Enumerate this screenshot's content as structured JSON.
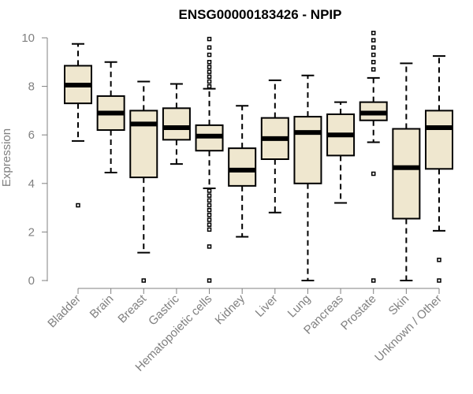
{
  "chart_data": {
    "type": "boxplot",
    "title": "ENSG00000183426 - NPIP",
    "xlabel": "",
    "ylabel": "Expression",
    "ylim": [
      0,
      10
    ],
    "yticks": [
      0,
      2,
      4,
      6,
      8,
      10
    ],
    "grid": false,
    "colors": {
      "box_fill": "#efe7cf",
      "box_stroke": "#000000",
      "axis": "#808080",
      "title": "#000000"
    },
    "categories": [
      "Bladder",
      "Brain",
      "Breast",
      "Gastric",
      "Hematopoietic cells",
      "Kidney",
      "Liver",
      "Lung",
      "Pancreas",
      "Prostate",
      "Skin",
      "Unknown / Other"
    ],
    "boxes": [
      {
        "name": "Bladder",
        "whisker_low": 5.75,
        "q1": 7.3,
        "median": 8.05,
        "q3": 8.85,
        "whisker_high": 9.75,
        "outliers": [
          3.1
        ]
      },
      {
        "name": "Brain",
        "whisker_low": 4.45,
        "q1": 6.2,
        "median": 6.9,
        "q3": 7.6,
        "whisker_high": 9.0,
        "outliers": []
      },
      {
        "name": "Breast",
        "whisker_low": 1.15,
        "q1": 4.25,
        "median": 6.45,
        "q3": 7.0,
        "whisker_high": 8.2,
        "outliers": [
          0.0
        ]
      },
      {
        "name": "Gastric",
        "whisker_low": 4.8,
        "q1": 5.8,
        "median": 6.3,
        "q3": 7.1,
        "whisker_high": 8.1,
        "outliers": []
      },
      {
        "name": "Hematopoietic cells",
        "whisker_low": 3.8,
        "q1": 5.35,
        "median": 5.95,
        "q3": 6.4,
        "whisker_high": 7.9,
        "outliers": [
          0.0,
          1.4,
          2.1,
          2.3,
          2.5,
          2.7,
          2.9,
          3.1,
          3.3,
          3.5,
          3.7,
          8.0,
          8.2,
          8.4,
          8.6,
          8.8,
          9.0,
          9.3,
          9.6,
          9.95
        ]
      },
      {
        "name": "Kidney",
        "whisker_low": 1.8,
        "q1": 3.9,
        "median": 4.55,
        "q3": 5.45,
        "whisker_high": 7.2,
        "outliers": []
      },
      {
        "name": "Liver",
        "whisker_low": 2.8,
        "q1": 5.0,
        "median": 5.85,
        "q3": 6.7,
        "whisker_high": 8.25,
        "outliers": []
      },
      {
        "name": "Lung",
        "whisker_low": 0.0,
        "q1": 4.0,
        "median": 6.1,
        "q3": 6.75,
        "whisker_high": 8.45,
        "outliers": []
      },
      {
        "name": "Pancreas",
        "whisker_low": 3.2,
        "q1": 5.15,
        "median": 6.0,
        "q3": 6.85,
        "whisker_high": 7.35,
        "outliers": []
      },
      {
        "name": "Prostate",
        "whisker_low": 5.7,
        "q1": 6.6,
        "median": 6.9,
        "q3": 7.35,
        "whisker_high": 8.35,
        "outliers": [
          0.0,
          4.4,
          8.7,
          9.0,
          9.3,
          9.6,
          9.9,
          10.2
        ]
      },
      {
        "name": "Skin",
        "whisker_low": 0.0,
        "q1": 2.55,
        "median": 4.65,
        "q3": 6.25,
        "whisker_high": 8.95,
        "outliers": []
      },
      {
        "name": "Unknown / Other",
        "whisker_low": 2.05,
        "q1": 4.6,
        "median": 6.3,
        "q3": 7.0,
        "whisker_high": 9.25,
        "outliers": [
          0.0,
          0.85
        ]
      }
    ]
  }
}
